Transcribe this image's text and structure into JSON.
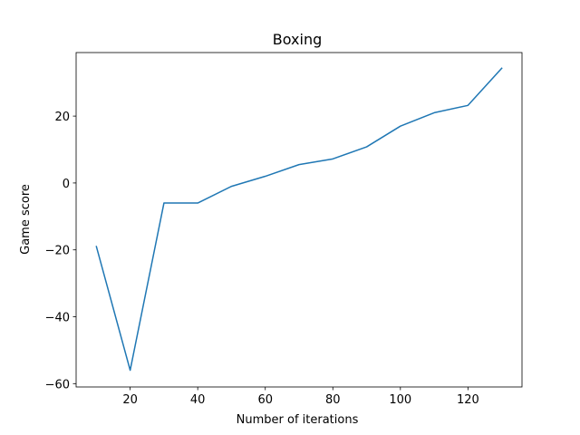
{
  "chart_data": {
    "type": "line",
    "title": "Boxing",
    "xlabel": "Number of iterations",
    "ylabel": "Game score",
    "xlim": [
      4,
      136
    ],
    "ylim": [
      -61,
      39
    ],
    "xticks": [
      20,
      40,
      60,
      80,
      100,
      120
    ],
    "yticks": [
      -60,
      -40,
      -20,
      0,
      20
    ],
    "grid": false,
    "series": [
      {
        "name": "Boxing",
        "color": "#1f77b4",
        "x": [
          10,
          20,
          30,
          40,
          50,
          60,
          70,
          80,
          90,
          100,
          110,
          120,
          130
        ],
        "y": [
          -19,
          -56,
          -6,
          -6,
          -1,
          2,
          5.5,
          7.2,
          10.8,
          17,
          21,
          23.2,
          34.3
        ]
      }
    ]
  }
}
